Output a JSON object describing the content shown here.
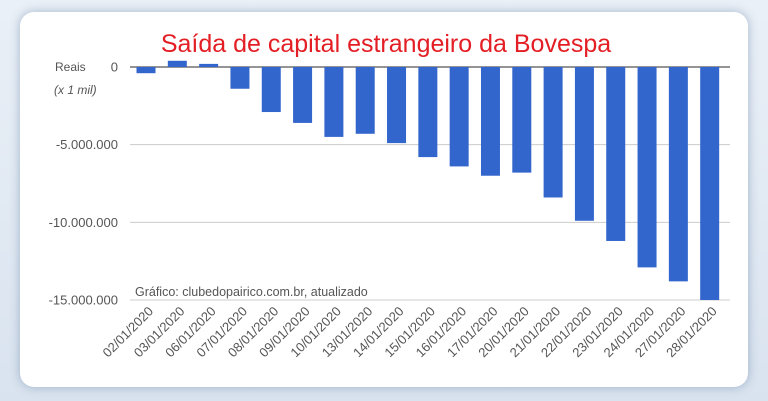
{
  "chart_data": {
    "type": "bar",
    "title": "Saída de capital estrangeiro da Bovespa",
    "ylabel": "Reais",
    "ylabel_unit": "(x 1 mil)",
    "credit": "Gráfico: clubedopairico.com.br, atualizado",
    "categories": [
      "02/01/2020",
      "03/01/2020",
      "06/01/2020",
      "07/01/2020",
      "08/01/2020",
      "09/01/2020",
      "10/01/2020",
      "13/01/2020",
      "14/01/2020",
      "15/01/2020",
      "16/01/2020",
      "17/01/2020",
      "20/01/2020",
      "21/01/2020",
      "22/01/2020",
      "23/01/2020",
      "24/01/2020",
      "27/01/2020",
      "28/01/2020"
    ],
    "values": [
      -400,
      400,
      200,
      -1400,
      -2900,
      -3600,
      -4500,
      -4300,
      -4900,
      -5800,
      -6400,
      -7000,
      -6800,
      -8400,
      -9900,
      -11200,
      -12900,
      -13800,
      -15000
    ],
    "ylim": [
      -15000000,
      0
    ],
    "yticks": [
      0,
      -5000000,
      -10000000,
      -15000000
    ],
    "ytick_labels": [
      "0",
      "-5.000.000",
      "-10.000.000",
      "-15.000.000"
    ],
    "value_scale": 1000,
    "bar_color": "#3366cc",
    "title_color": "#e31e24",
    "grid": true,
    "legend": "none"
  }
}
